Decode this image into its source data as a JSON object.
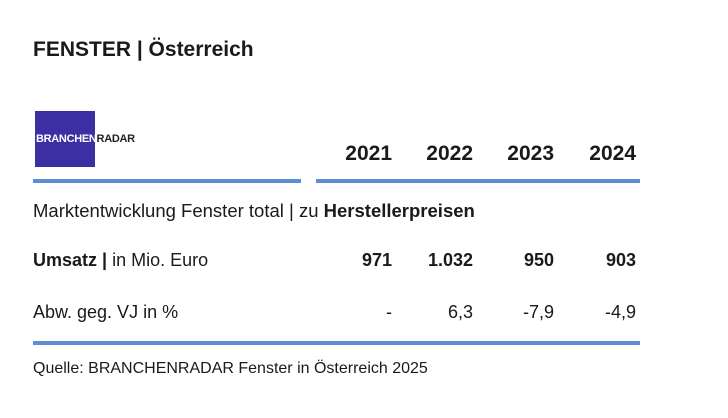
{
  "header": {
    "title": "FENSTER | Österreich",
    "logo": {
      "part1": "BRANCHEN",
      "part2": "RADAR"
    }
  },
  "table": {
    "subtitle": {
      "regular": "Marktentwicklung Fenster total | zu ",
      "bold": "Herstellerpreisen"
    },
    "columns": [
      "2021",
      "2022",
      "2023",
      "2024"
    ],
    "rows": [
      {
        "label": {
          "bold": "Umsatz |",
          "regular": " in Mio. Euro"
        },
        "cells": [
          "971",
          "1.032",
          "950",
          "903"
        ]
      },
      {
        "label": {
          "bold": "",
          "regular": "Abw. geg. VJ in %"
        },
        "cells": [
          "-",
          "6,3",
          "-7,9",
          "-4,9"
        ]
      }
    ]
  },
  "footer": {
    "source": "Quelle: BRANCHENRADAR Fenster in Österreich 2025"
  }
}
